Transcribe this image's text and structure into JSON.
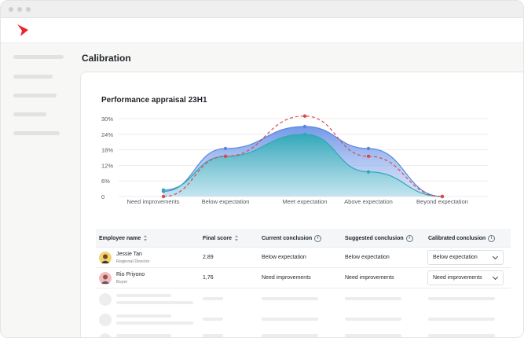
{
  "app": {
    "page_title": "Calibration",
    "brand_color": "#e8242e"
  },
  "chart": {
    "title": "Performance appraisal 23H1"
  },
  "chart_data": {
    "type": "area",
    "categories": [
      "Need improvements",
      "Below expectation",
      "Meet expectation",
      "Above expectation",
      "Beyond expectation"
    ],
    "y_ticks": [
      "0",
      "6%",
      "12%",
      "18%",
      "24%",
      "30%"
    ],
    "ylim": [
      0,
      30
    ],
    "grid": true,
    "series": [
      {
        "style": "area-blue",
        "color": "#5a86e0",
        "values": [
          2,
          18.5,
          27,
          18.5,
          0
        ]
      },
      {
        "style": "area-teal",
        "color": "#2fa9b6",
        "values": [
          2.5,
          15.5,
          24,
          9.5,
          0
        ]
      },
      {
        "style": "dashed-red",
        "color": "#d94a4a",
        "values": [
          0,
          15.5,
          31,
          15.5,
          0
        ]
      }
    ]
  },
  "table": {
    "columns": [
      {
        "label": "Employee name",
        "sortable": true
      },
      {
        "label": "Final score",
        "sortable": true
      },
      {
        "label": "Current conclusion",
        "info": true
      },
      {
        "label": "Suggested conclusion",
        "info": true
      },
      {
        "label": "Calibrated conclusion",
        "info": true
      }
    ],
    "rows": [
      {
        "name": "Jessie Tan",
        "role": "Regional Director",
        "score": "2,89",
        "current": "Below expectation",
        "suggested": "Below expectation",
        "calibrated": "Below expectation"
      },
      {
        "name": "Rio Priyono",
        "role": "Buyer",
        "score": "1,76",
        "current": "Need improvements",
        "suggested": "Need improvements",
        "calibrated": "Need improvements"
      }
    ]
  }
}
